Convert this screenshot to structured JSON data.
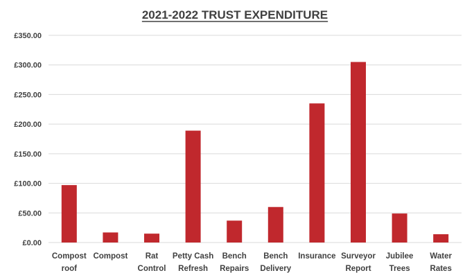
{
  "chart_data": {
    "type": "bar",
    "title": "2021-2022 TRUST EXPENDITURE",
    "xlabel": "",
    "ylabel": "",
    "categories": [
      [
        "Compost",
        "roof"
      ],
      [
        "Compost"
      ],
      [
        "Rat",
        "Control"
      ],
      [
        "Petty Cash",
        "Refresh"
      ],
      [
        "Bench",
        "Repairs"
      ],
      [
        "Bench",
        "Delivery"
      ],
      [
        "Insurance"
      ],
      [
        "Surveyor",
        "Report"
      ],
      [
        "Jubilee",
        "Trees"
      ],
      [
        "Water",
        "Rates"
      ]
    ],
    "values": [
      97,
      17,
      15,
      189,
      37,
      60,
      235,
      305,
      49,
      14
    ],
    "ylim": [
      0,
      350
    ],
    "yticks": [
      "£0.00",
      "£50.00",
      "£100.00",
      "£150.00",
      "£200.00",
      "£250.00",
      "£300.00",
      "£350.00"
    ],
    "bar_color": "#c0282d",
    "grid": true,
    "legend": "none"
  }
}
